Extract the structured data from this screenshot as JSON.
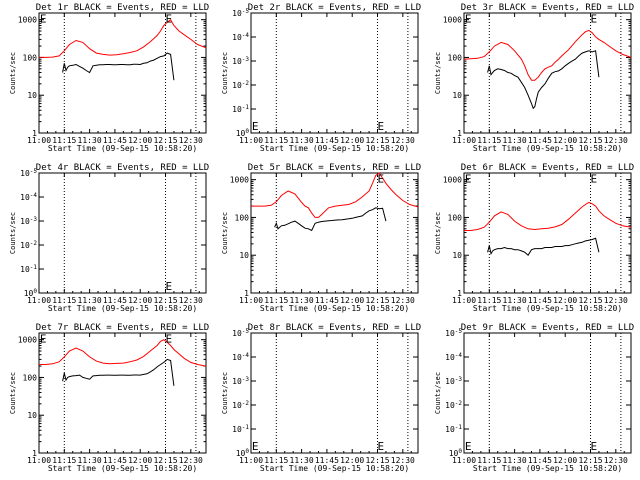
{
  "chart_data": [
    {
      "type": "line",
      "title": "Det 1r BLACK = Events, RED = LLD",
      "xlabel": "Start Time (09-Sep-15 10:58:20)",
      "ylabel": "Counts/sec",
      "yscale": "log",
      "ylim": [
        1,
        1500
      ],
      "yticks": [
        "1",
        "10",
        "100",
        "1000"
      ],
      "xticks": [
        "11:00",
        "11:15",
        "11:30",
        "11:45",
        "12:00",
        "12:15",
        "12:30"
      ],
      "xlim_min": [
        0,
        99
      ],
      "vlines_min": [
        15,
        75,
        93
      ],
      "markers": [
        {
          "text": "E",
          "x_min": 0.5,
          "y": 1000
        },
        {
          "text": "E",
          "x_min": 75,
          "y": 1000
        }
      ],
      "series": [
        {
          "name": "LLD",
          "color": "#ff0000",
          "x": [
            0,
            4,
            8,
            12,
            15,
            18,
            22,
            26,
            30,
            34,
            38,
            42,
            46,
            50,
            54,
            58,
            62,
            66,
            70,
            72,
            74,
            76,
            78,
            80,
            83,
            86,
            90,
            94,
            99
          ],
          "y": [
            100,
            100,
            102,
            110,
            150,
            220,
            280,
            250,
            170,
            130,
            120,
            115,
            118,
            125,
            135,
            150,
            190,
            260,
            380,
            500,
            700,
            850,
            1000,
            700,
            500,
            400,
            300,
            220,
            180
          ]
        },
        {
          "name": "Events",
          "color": "#000000",
          "x": [
            14,
            15,
            16,
            17,
            18,
            20,
            22,
            24,
            26,
            28,
            30,
            32,
            34,
            36,
            38,
            40,
            42,
            44,
            46,
            48,
            50,
            52,
            54,
            56,
            58,
            60,
            62,
            64,
            66,
            68,
            70,
            72,
            74,
            76,
            78,
            80
          ],
          "y": [
            40,
            70,
            45,
            55,
            60,
            62,
            65,
            58,
            52,
            45,
            40,
            60,
            62,
            64,
            64,
            65,
            65,
            64,
            64,
            65,
            65,
            64,
            64,
            66,
            66,
            65,
            70,
            72,
            80,
            85,
            95,
            105,
            110,
            130,
            120,
            25
          ]
        }
      ]
    },
    {
      "type": "line",
      "title": "Det 2r BLACK = Events, RED = LLD",
      "xlabel": "Start Time (09-Sep-15 10:58:20)",
      "ylabel": "Counts/sec",
      "yscale": "log",
      "yticks": [
        "10^0",
        "10^-1",
        "10^-2",
        "10^-3",
        "10^-4",
        "10^-5"
      ],
      "xticks": [
        "11:00",
        "11:15",
        "11:30",
        "11:45",
        "12:00",
        "12:15",
        "12:30"
      ],
      "xlim_min": [
        0,
        99
      ],
      "vlines_min": [
        15,
        75,
        93
      ],
      "markers": [
        {
          "text": "E",
          "x_min": 0.5,
          "y": "bottom"
        },
        {
          "text": "E",
          "x_min": 75,
          "y": "bottom"
        }
      ],
      "series": []
    },
    {
      "type": "line",
      "title": "Det 3r BLACK = Events, RED = LLD",
      "xlabel": "Start Time (09-Sep-15 10:58:20)",
      "ylabel": "Counts/sec",
      "yscale": "log",
      "ylim": [
        1,
        1500
      ],
      "yticks": [
        "1",
        "10",
        "100",
        "1000"
      ],
      "xticks": [
        "11:00",
        "11:15",
        "11:30",
        "11:45",
        "12:00",
        "12:15",
        "12:30"
      ],
      "xlim_min": [
        0,
        99
      ],
      "vlines_min": [
        15,
        75,
        93
      ],
      "markers": [
        {
          "text": "E",
          "x_min": 0.5,
          "y": 1000
        },
        {
          "text": "E",
          "x_min": 75,
          "y": 1000
        }
      ],
      "series": [
        {
          "name": "LLD",
          "color": "#ff0000",
          "x": [
            0,
            4,
            8,
            12,
            15,
            18,
            22,
            26,
            30,
            34,
            36,
            38,
            40,
            42,
            44,
            46,
            48,
            50,
            52,
            54,
            56,
            58,
            62,
            66,
            70,
            72,
            74,
            76,
            78,
            80,
            83,
            86,
            90,
            94,
            99
          ],
          "y": [
            90,
            92,
            95,
            105,
            140,
            200,
            250,
            220,
            150,
            90,
            60,
            35,
            25,
            25,
            30,
            40,
            50,
            55,
            60,
            75,
            90,
            110,
            160,
            260,
            400,
            480,
            520,
            450,
            350,
            300,
            250,
            200,
            150,
            120,
            100
          ]
        },
        {
          "name": "Events",
          "color": "#000000",
          "x": [
            14,
            15,
            16,
            17,
            18,
            20,
            22,
            24,
            26,
            28,
            30,
            32,
            34,
            36,
            38,
            40,
            41,
            42,
            43,
            44,
            46,
            48,
            50,
            52,
            54,
            56,
            58,
            60,
            62,
            64,
            66,
            68,
            70,
            72,
            74,
            76,
            78,
            80
          ],
          "y": [
            40,
            60,
            35,
            40,
            45,
            50,
            48,
            45,
            40,
            38,
            33,
            30,
            22,
            16,
            10,
            6,
            4.5,
            5,
            8,
            12,
            16,
            20,
            28,
            38,
            42,
            44,
            50,
            60,
            70,
            80,
            90,
            110,
            130,
            140,
            150,
            140,
            150,
            30
          ]
        }
      ]
    },
    {
      "type": "line",
      "title": "Det 4r BLACK = Events, RED = LLD",
      "xlabel": "Start Time (09-Sep-15 10:58:20)",
      "ylabel": "Counts/sec",
      "yscale": "log",
      "yticks": [
        "10^0",
        "10^-1",
        "10^-2",
        "10^-3",
        "10^-4",
        "10^-5"
      ],
      "xticks": [
        "11:00",
        "11:15",
        "11:30",
        "11:45",
        "12:00",
        "12:15",
        "12:30"
      ],
      "xlim_min": [
        0,
        99
      ],
      "vlines_min": [
        15,
        75,
        93
      ],
      "markers": [
        {
          "text": "E",
          "x_min": 75,
          "y": "bottom"
        }
      ],
      "series": []
    },
    {
      "type": "line",
      "title": "Det 5r BLACK = Events, RED = LLD",
      "xlabel": "Start Time (09-Sep-15 10:58:20)",
      "ylabel": "Counts/sec",
      "yscale": "log",
      "ylim": [
        1,
        1500
      ],
      "yticks": [
        "1",
        "10",
        "100",
        "1000"
      ],
      "xticks": [
        "11:00",
        "11:15",
        "11:30",
        "11:45",
        "12:00",
        "12:15",
        "12:30"
      ],
      "xlim_min": [
        0,
        99
      ],
      "vlines_min": [
        15,
        75,
        93
      ],
      "markers": [
        {
          "text": "E",
          "x_min": 75,
          "y": 1000
        }
      ],
      "series": [
        {
          "name": "LLD",
          "color": "#ff0000",
          "x": [
            0,
            4,
            8,
            12,
            15,
            18,
            22,
            26,
            30,
            32,
            34,
            36,
            38,
            40,
            42,
            46,
            50,
            54,
            58,
            62,
            66,
            70,
            72,
            74,
            76,
            78,
            80,
            83,
            86,
            90,
            94,
            99
          ],
          "y": [
            200,
            200,
            200,
            210,
            260,
            380,
            500,
            420,
            250,
            200,
            180,
            130,
            100,
            100,
            120,
            180,
            200,
            210,
            220,
            260,
            350,
            500,
            800,
            1300,
            1500,
            1100,
            800,
            550,
            400,
            280,
            220,
            190
          ]
        },
        {
          "name": "Events",
          "color": "#000000",
          "x": [
            14,
            15,
            16,
            17,
            18,
            20,
            22,
            24,
            26,
            28,
            30,
            32,
            34,
            36,
            38,
            40,
            42,
            44,
            46,
            48,
            50,
            52,
            54,
            56,
            58,
            60,
            62,
            64,
            66,
            68,
            70,
            72,
            74,
            76,
            78,
            80
          ],
          "y": [
            55,
            70,
            50,
            55,
            60,
            62,
            68,
            75,
            80,
            70,
            60,
            52,
            50,
            45,
            70,
            75,
            78,
            80,
            82,
            83,
            85,
            86,
            87,
            90,
            92,
            95,
            100,
            105,
            110,
            130,
            150,
            160,
            180,
            170,
            175,
            80
          ]
        }
      ]
    },
    {
      "type": "line",
      "title": "Det 6r BLACK = Events, RED = LLD",
      "xlabel": "Start Time (09-Sep-15 10:58:20)",
      "ylabel": "Counts/sec",
      "yscale": "log",
      "ylim": [
        1,
        1500
      ],
      "yticks": [
        "1",
        "10",
        "100",
        "1000"
      ],
      "xticks": [
        "11:00",
        "11:15",
        "11:30",
        "11:45",
        "12:00",
        "12:15",
        "12:30"
      ],
      "xlim_min": [
        0,
        99
      ],
      "vlines_min": [
        15,
        75,
        93
      ],
      "markers": [
        {
          "text": "E",
          "x_min": 0.5,
          "y": 1000
        },
        {
          "text": "E",
          "x_min": 75,
          "y": 1000
        }
      ],
      "series": [
        {
          "name": "LLD",
          "color": "#ff0000",
          "x": [
            0,
            4,
            8,
            12,
            15,
            18,
            22,
            26,
            30,
            34,
            38,
            42,
            46,
            50,
            54,
            58,
            62,
            66,
            70,
            72,
            74,
            76,
            78,
            80,
            83,
            86,
            90,
            94,
            99
          ],
          "y": [
            45,
            45,
            48,
            55,
            75,
            110,
            140,
            120,
            80,
            60,
            50,
            48,
            50,
            52,
            56,
            65,
            90,
            130,
            190,
            220,
            250,
            230,
            200,
            150,
            110,
            90,
            70,
            60,
            55
          ]
        },
        {
          "name": "Events",
          "color": "#000000",
          "x": [
            14,
            15,
            16,
            17,
            18,
            20,
            22,
            24,
            26,
            28,
            30,
            32,
            34,
            36,
            38,
            40,
            42,
            44,
            46,
            48,
            50,
            52,
            54,
            56,
            58,
            60,
            62,
            64,
            66,
            68,
            70,
            72,
            74,
            76,
            78,
            80
          ],
          "y": [
            12,
            18,
            11,
            13,
            14,
            15,
            15,
            16,
            15,
            15,
            14,
            14,
            13,
            12,
            10,
            14,
            15,
            15,
            15,
            16,
            16,
            16,
            17,
            17,
            17,
            18,
            18,
            19,
            20,
            21,
            22,
            24,
            25,
            26,
            28,
            12
          ]
        }
      ]
    },
    {
      "type": "line",
      "title": "Det 7r BLACK = Events, RED = LLD",
      "xlabel": "Start Time (09-Sep-15 10:58:20)",
      "ylabel": "Counts/sec",
      "yscale": "log",
      "ylim": [
        1,
        1500
      ],
      "yticks": [
        "1",
        "10",
        "100",
        "1000"
      ],
      "xticks": [
        "11:00",
        "11:15",
        "11:30",
        "11:45",
        "12:00",
        "12:15",
        "12:30"
      ],
      "xlim_min": [
        0,
        99
      ],
      "vlines_min": [
        15,
        75,
        93
      ],
      "markers": [
        {
          "text": "E",
          "x_min": 0.5,
          "y": 1000
        },
        {
          "text": "E",
          "x_min": 75,
          "y": 1000
        }
      ],
      "series": [
        {
          "name": "LLD",
          "color": "#ff0000",
          "x": [
            0,
            4,
            8,
            12,
            15,
            18,
            22,
            26,
            30,
            34,
            38,
            42,
            46,
            50,
            54,
            58,
            62,
            66,
            70,
            72,
            74,
            76,
            78,
            80,
            83,
            86,
            90,
            94,
            99
          ],
          "y": [
            220,
            220,
            230,
            260,
            350,
            500,
            600,
            500,
            350,
            270,
            240,
            230,
            235,
            240,
            260,
            290,
            360,
            500,
            700,
            900,
            1000,
            850,
            700,
            550,
            420,
            320,
            250,
            220,
            200
          ]
        },
        {
          "name": "Events",
          "color": "#000000",
          "x": [
            14,
            15,
            16,
            17,
            18,
            20,
            22,
            24,
            26,
            28,
            30,
            32,
            34,
            36,
            38,
            40,
            42,
            44,
            46,
            48,
            50,
            52,
            54,
            56,
            58,
            60,
            62,
            64,
            66,
            68,
            70,
            72,
            74,
            76,
            78,
            80
          ],
          "y": [
            80,
            130,
            85,
            100,
            105,
            110,
            112,
            115,
            100,
            95,
            90,
            110,
            112,
            114,
            114,
            115,
            115,
            114,
            114,
            115,
            115,
            114,
            114,
            116,
            116,
            115,
            120,
            125,
            140,
            160,
            190,
            220,
            250,
            300,
            280,
            60
          ]
        }
      ]
    },
    {
      "type": "line",
      "title": "Det 8r BLACK = Events, RED = LLD",
      "xlabel": "Start Time (09-Sep-15 10:58:20)",
      "ylabel": "Counts/sec",
      "yscale": "log",
      "yticks": [
        "10^0",
        "10^-1",
        "10^-2",
        "10^-3",
        "10^-4",
        "10^-5"
      ],
      "xticks": [
        "11:00",
        "11:15",
        "11:30",
        "11:45",
        "12:00",
        "12:15",
        "12:30"
      ],
      "xlim_min": [
        0,
        99
      ],
      "vlines_min": [
        15,
        75,
        93
      ],
      "markers": [
        {
          "text": "E",
          "x_min": 0.5,
          "y": "bottom"
        },
        {
          "text": "E",
          "x_min": 75,
          "y": "bottom"
        }
      ],
      "series": []
    },
    {
      "type": "line",
      "title": "Det 9r BLACK = Events, RED = LLD",
      "xlabel": "Start Time (09-Sep-15 10:58:20)",
      "ylabel": "Counts/sec",
      "yscale": "log",
      "yticks": [
        "10^0",
        "10^-1",
        "10^-2",
        "10^-3",
        "10^-4",
        "10^-5"
      ],
      "xticks": [
        "11:00",
        "11:15",
        "11:30",
        "11:45",
        "12:00",
        "12:15",
        "12:30"
      ],
      "xlim_min": [
        0,
        99
      ],
      "vlines_min": [
        15,
        75,
        93
      ],
      "markers": [
        {
          "text": "E",
          "x_min": 0.5,
          "y": "bottom"
        },
        {
          "text": "E",
          "x_min": 75,
          "y": "bottom"
        }
      ],
      "series": []
    }
  ]
}
